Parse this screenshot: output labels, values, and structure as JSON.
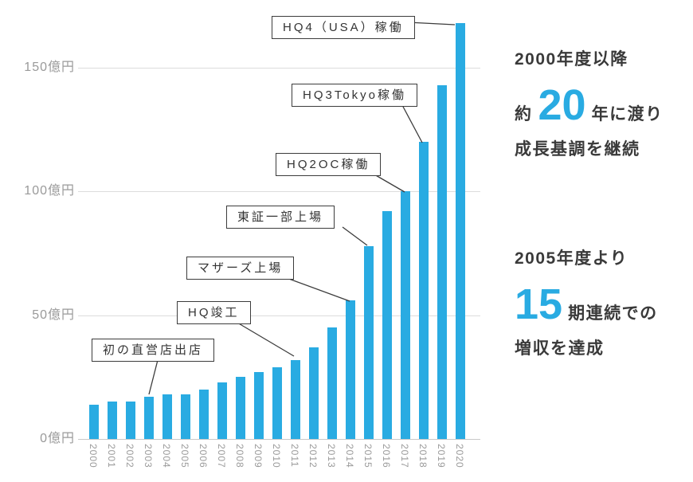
{
  "chart_data": {
    "type": "bar",
    "title": "",
    "xlabel": "",
    "ylabel": "億円",
    "unit": "億円",
    "categories": [
      "2000",
      "2001",
      "2002",
      "2003",
      "2004",
      "2005",
      "2006",
      "2007",
      "2008",
      "2009",
      "2010",
      "2011",
      "2012",
      "2013",
      "2014",
      "2015",
      "2016",
      "2017",
      "2018",
      "2019",
      "2020"
    ],
    "values": [
      14,
      15,
      15,
      17,
      18,
      18,
      20,
      23,
      25,
      27,
      29,
      32,
      37,
      45,
      56,
      78,
      92,
      100,
      120,
      143,
      168
    ],
    "ylim": [
      0,
      170
    ],
    "y_ticks": [
      {
        "value": 0,
        "label": "0億円"
      },
      {
        "value": 50,
        "label": "50億円"
      },
      {
        "value": 100,
        "label": "100億円"
      },
      {
        "value": 150,
        "label": "150億円"
      }
    ],
    "grid": true,
    "legend": false,
    "bar_color": "#29ABE2",
    "annotations": [
      {
        "label": "初の直営店出店",
        "target_year": "2003"
      },
      {
        "label": "HQ竣工",
        "target_year": "2011"
      },
      {
        "label": "マザーズ上場",
        "target_year": "2014"
      },
      {
        "label": "東証一部上場",
        "target_year": "2015"
      },
      {
        "label": "HQ2OC稼働",
        "target_year": "2017"
      },
      {
        "label": "HQ3Tokyo稼働",
        "target_year": "2018"
      },
      {
        "label": "HQ4（USA）稼働",
        "target_year": "2020"
      }
    ]
  },
  "side_panel": {
    "block1": {
      "line1": "2000年度以降",
      "line2_prefix": "約",
      "line2_number": "20",
      "line2_suffix": "年に渡り",
      "line3": "成長基調を継続"
    },
    "block2": {
      "line1": "2005年度より",
      "line2_number": "15",
      "line2_suffix": "期連続での",
      "line3": "増収を達成"
    }
  },
  "colors": {
    "accent": "#29ABE2",
    "axis_text": "#9a9a9a",
    "text": "#3a3a3a",
    "grid": "#dcdcdc",
    "callout_border": "#3c3c3c"
  }
}
